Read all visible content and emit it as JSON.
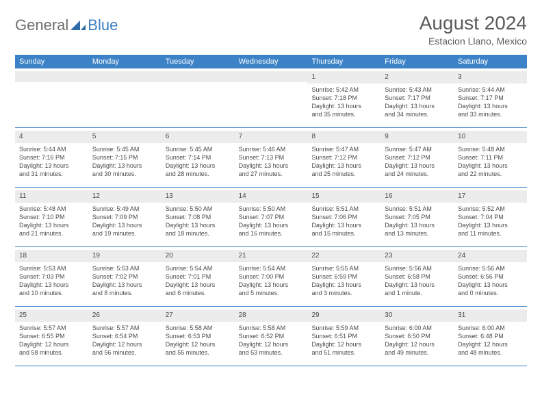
{
  "brand": {
    "general": "General",
    "blue": "Blue"
  },
  "title": "August 2024",
  "location": "Estacion Llano, Mexico",
  "header_bg": "#3b82c7",
  "band_bg": "#ececec",
  "dow": [
    "Sunday",
    "Monday",
    "Tuesday",
    "Wednesday",
    "Thursday",
    "Friday",
    "Saturday"
  ],
  "weeks": [
    [
      null,
      null,
      null,
      null,
      {
        "n": "1",
        "sr": "Sunrise: 5:42 AM",
        "ss": "Sunset: 7:18 PM",
        "d1": "Daylight: 13 hours",
        "d2": "and 35 minutes."
      },
      {
        "n": "2",
        "sr": "Sunrise: 5:43 AM",
        "ss": "Sunset: 7:17 PM",
        "d1": "Daylight: 13 hours",
        "d2": "and 34 minutes."
      },
      {
        "n": "3",
        "sr": "Sunrise: 5:44 AM",
        "ss": "Sunset: 7:17 PM",
        "d1": "Daylight: 13 hours",
        "d2": "and 33 minutes."
      }
    ],
    [
      {
        "n": "4",
        "sr": "Sunrise: 5:44 AM",
        "ss": "Sunset: 7:16 PM",
        "d1": "Daylight: 13 hours",
        "d2": "and 31 minutes."
      },
      {
        "n": "5",
        "sr": "Sunrise: 5:45 AM",
        "ss": "Sunset: 7:15 PM",
        "d1": "Daylight: 13 hours",
        "d2": "and 30 minutes."
      },
      {
        "n": "6",
        "sr": "Sunrise: 5:45 AM",
        "ss": "Sunset: 7:14 PM",
        "d1": "Daylight: 13 hours",
        "d2": "and 28 minutes."
      },
      {
        "n": "7",
        "sr": "Sunrise: 5:46 AM",
        "ss": "Sunset: 7:13 PM",
        "d1": "Daylight: 13 hours",
        "d2": "and 27 minutes."
      },
      {
        "n": "8",
        "sr": "Sunrise: 5:47 AM",
        "ss": "Sunset: 7:12 PM",
        "d1": "Daylight: 13 hours",
        "d2": "and 25 minutes."
      },
      {
        "n": "9",
        "sr": "Sunrise: 5:47 AM",
        "ss": "Sunset: 7:12 PM",
        "d1": "Daylight: 13 hours",
        "d2": "and 24 minutes."
      },
      {
        "n": "10",
        "sr": "Sunrise: 5:48 AM",
        "ss": "Sunset: 7:11 PM",
        "d1": "Daylight: 13 hours",
        "d2": "and 22 minutes."
      }
    ],
    [
      {
        "n": "11",
        "sr": "Sunrise: 5:48 AM",
        "ss": "Sunset: 7:10 PM",
        "d1": "Daylight: 13 hours",
        "d2": "and 21 minutes."
      },
      {
        "n": "12",
        "sr": "Sunrise: 5:49 AM",
        "ss": "Sunset: 7:09 PM",
        "d1": "Daylight: 13 hours",
        "d2": "and 19 minutes."
      },
      {
        "n": "13",
        "sr": "Sunrise: 5:50 AM",
        "ss": "Sunset: 7:08 PM",
        "d1": "Daylight: 13 hours",
        "d2": "and 18 minutes."
      },
      {
        "n": "14",
        "sr": "Sunrise: 5:50 AM",
        "ss": "Sunset: 7:07 PM",
        "d1": "Daylight: 13 hours",
        "d2": "and 16 minutes."
      },
      {
        "n": "15",
        "sr": "Sunrise: 5:51 AM",
        "ss": "Sunset: 7:06 PM",
        "d1": "Daylight: 13 hours",
        "d2": "and 15 minutes."
      },
      {
        "n": "16",
        "sr": "Sunrise: 5:51 AM",
        "ss": "Sunset: 7:05 PM",
        "d1": "Daylight: 13 hours",
        "d2": "and 13 minutes."
      },
      {
        "n": "17",
        "sr": "Sunrise: 5:52 AM",
        "ss": "Sunset: 7:04 PM",
        "d1": "Daylight: 13 hours",
        "d2": "and 11 minutes."
      }
    ],
    [
      {
        "n": "18",
        "sr": "Sunrise: 5:53 AM",
        "ss": "Sunset: 7:03 PM",
        "d1": "Daylight: 13 hours",
        "d2": "and 10 minutes."
      },
      {
        "n": "19",
        "sr": "Sunrise: 5:53 AM",
        "ss": "Sunset: 7:02 PM",
        "d1": "Daylight: 13 hours",
        "d2": "and 8 minutes."
      },
      {
        "n": "20",
        "sr": "Sunrise: 5:54 AM",
        "ss": "Sunset: 7:01 PM",
        "d1": "Daylight: 13 hours",
        "d2": "and 6 minutes."
      },
      {
        "n": "21",
        "sr": "Sunrise: 5:54 AM",
        "ss": "Sunset: 7:00 PM",
        "d1": "Daylight: 13 hours",
        "d2": "and 5 minutes."
      },
      {
        "n": "22",
        "sr": "Sunrise: 5:55 AM",
        "ss": "Sunset: 6:59 PM",
        "d1": "Daylight: 13 hours",
        "d2": "and 3 minutes."
      },
      {
        "n": "23",
        "sr": "Sunrise: 5:56 AM",
        "ss": "Sunset: 6:58 PM",
        "d1": "Daylight: 13 hours",
        "d2": "and 1 minute."
      },
      {
        "n": "24",
        "sr": "Sunrise: 5:56 AM",
        "ss": "Sunset: 6:56 PM",
        "d1": "Daylight: 13 hours",
        "d2": "and 0 minutes."
      }
    ],
    [
      {
        "n": "25",
        "sr": "Sunrise: 5:57 AM",
        "ss": "Sunset: 6:55 PM",
        "d1": "Daylight: 12 hours",
        "d2": "and 58 minutes."
      },
      {
        "n": "26",
        "sr": "Sunrise: 5:57 AM",
        "ss": "Sunset: 6:54 PM",
        "d1": "Daylight: 12 hours",
        "d2": "and 56 minutes."
      },
      {
        "n": "27",
        "sr": "Sunrise: 5:58 AM",
        "ss": "Sunset: 6:53 PM",
        "d1": "Daylight: 12 hours",
        "d2": "and 55 minutes."
      },
      {
        "n": "28",
        "sr": "Sunrise: 5:58 AM",
        "ss": "Sunset: 6:52 PM",
        "d1": "Daylight: 12 hours",
        "d2": "and 53 minutes."
      },
      {
        "n": "29",
        "sr": "Sunrise: 5:59 AM",
        "ss": "Sunset: 6:51 PM",
        "d1": "Daylight: 12 hours",
        "d2": "and 51 minutes."
      },
      {
        "n": "30",
        "sr": "Sunrise: 6:00 AM",
        "ss": "Sunset: 6:50 PM",
        "d1": "Daylight: 12 hours",
        "d2": "and 49 minutes."
      },
      {
        "n": "31",
        "sr": "Sunrise: 6:00 AM",
        "ss": "Sunset: 6:48 PM",
        "d1": "Daylight: 12 hours",
        "d2": "and 48 minutes."
      }
    ]
  ]
}
